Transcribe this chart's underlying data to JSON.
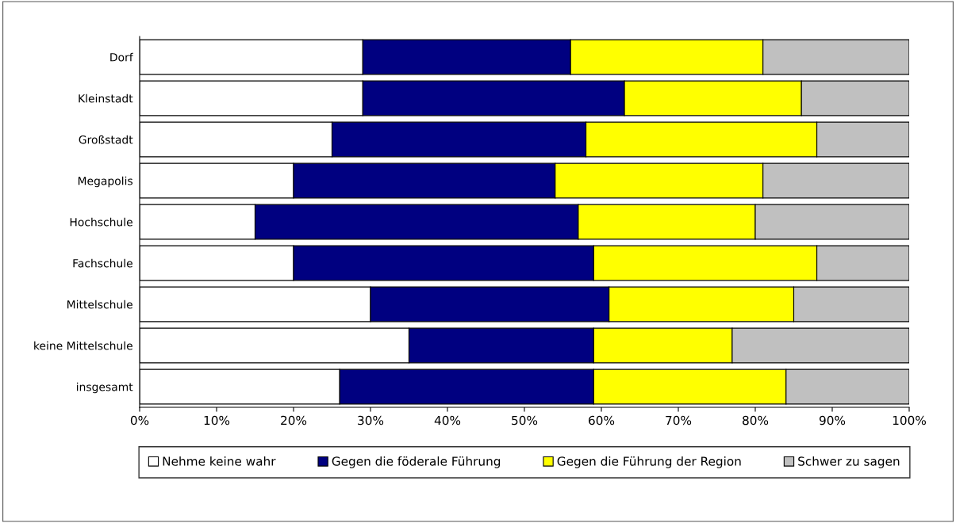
{
  "chart_data": {
    "type": "bar",
    "orientation": "horizontal",
    "stacked": true,
    "categories": [
      "Dorf",
      "Kleinstadt",
      "Großstadt",
      "Megapolis",
      "Hochschule",
      "Fachschule",
      "Mittelschule",
      "keine Mittelschule",
      "insgesamt"
    ],
    "series": [
      {
        "name": "Nehme keine wahr",
        "color": "#ffffff",
        "values": [
          29,
          29,
          25,
          20,
          15,
          20,
          30,
          35,
          26
        ]
      },
      {
        "name": "Gegen die föderale Führung",
        "color": "#000080",
        "values": [
          27,
          34,
          33,
          34,
          42,
          39,
          31,
          24,
          33
        ]
      },
      {
        "name": "Gegen die Führung der Region",
        "color": "#ffff00",
        "values": [
          25,
          23,
          30,
          27,
          23,
          29,
          24,
          18,
          25
        ]
      },
      {
        "name": "Schwer zu sagen",
        "color": "#c0c0c0",
        "values": [
          19,
          14,
          12,
          19,
          20,
          12,
          15,
          23,
          16
        ]
      }
    ],
    "xlim": [
      0,
      100
    ],
    "xticks": [
      {
        "value": 0,
        "label": "0%"
      },
      {
        "value": 10,
        "label": "10%"
      },
      {
        "value": 20,
        "label": "20%"
      },
      {
        "value": 30,
        "label": "30%"
      },
      {
        "value": 40,
        "label": "40%"
      },
      {
        "value": 50,
        "label": "50%"
      },
      {
        "value": 60,
        "label": "60%"
      },
      {
        "value": 70,
        "label": "70%"
      },
      {
        "value": 80,
        "label": "80%"
      },
      {
        "value": 90,
        "label": "90%"
      },
      {
        "value": 100,
        "label": "100%"
      }
    ],
    "grid": false,
    "legend": "bottom"
  }
}
